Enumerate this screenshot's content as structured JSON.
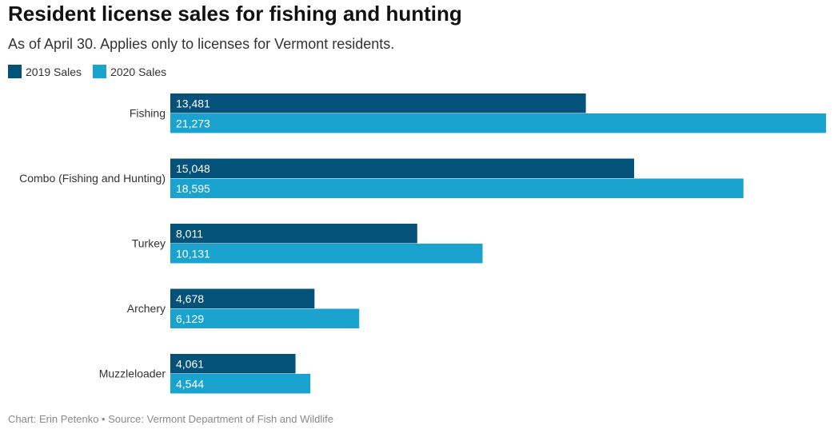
{
  "chart_data": {
    "type": "bar",
    "orientation": "horizontal",
    "title": "Resident license sales for fishing and hunting",
    "subtitle": "As of April 30. Applies only to licenses for Vermont residents.",
    "categories": [
      "Fishing",
      "Combo (Fishing and Hunting)",
      "Turkey",
      "Archery",
      "Muzzleloader"
    ],
    "series": [
      {
        "name": "2019 Sales",
        "color": "#04527a",
        "values": [
          13481,
          15048,
          8011,
          4678,
          4061
        ]
      },
      {
        "name": "2020 Sales",
        "color": "#1ba3cf",
        "values": [
          21273,
          18595,
          10131,
          6129,
          4544
        ]
      }
    ],
    "xlim": [
      0,
      21273
    ],
    "grid": false,
    "legend": "top-left",
    "data_labels": true
  },
  "footer": "Chart: Erin Petenko • Source: Vermont Department of Fish and Wildlife"
}
